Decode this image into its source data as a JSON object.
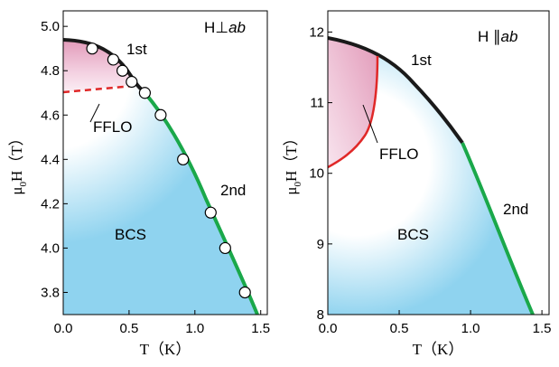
{
  "chart_data": [
    {
      "type": "line",
      "panel_label": "H⊥",
      "panel_label_italic": "ab",
      "xlabel": "T（K）",
      "ylabel_main": "μ",
      "ylabel_sub": "0",
      "ylabel_rest": "H（T）",
      "xlim": [
        0,
        1.55
      ],
      "ylim": [
        3.7,
        5.07
      ],
      "xticks": [
        "0.0",
        "0.5",
        "1.0",
        "1.5"
      ],
      "yticks": [
        "3.8",
        "4.0",
        "4.2",
        "4.4",
        "4.6",
        "4.8",
        "5.0"
      ],
      "region_labels": {
        "first": "1st",
        "second": "2nd",
        "ffle": "FFLO",
        "bcs": "BCS"
      },
      "colors": {
        "first_order": "#1a1a1a",
        "second_order": "#1aa84a",
        "fflo_boundary": "#e02828",
        "bcs_fill": "#8fd3ef",
        "fflo_fill": "#e9a9c4"
      },
      "series": [
        {
          "name": "1st",
          "x": [
            0,
            0.2,
            0.4,
            0.5,
            0.6
          ],
          "y": [
            4.95,
            4.92,
            4.84,
            4.77,
            4.7
          ]
        },
        {
          "name": "2nd",
          "x": [
            0.6,
            0.8,
            1.0,
            1.2,
            1.35,
            1.45
          ],
          "y": [
            4.7,
            4.5,
            4.25,
            3.95,
            3.73,
            3.55
          ]
        },
        {
          "name": "FFLO",
          "x": [
            0,
            0.2,
            0.5
          ],
          "y": [
            4.71,
            4.72,
            4.74
          ]
        }
      ],
      "points": {
        "x": [
          0.22,
          0.38,
          0.45,
          0.52,
          0.62,
          0.74,
          0.91,
          1.12,
          1.23,
          1.38
        ],
        "y": [
          4.9,
          4.85,
          4.8,
          4.75,
          4.7,
          4.6,
          4.4,
          4.16,
          4.0,
          3.8
        ]
      }
    },
    {
      "type": "line",
      "panel_label": "H ∥",
      "panel_label_italic": "ab",
      "xlabel": "T（K）",
      "ylabel_main": "μ",
      "ylabel_sub": "0",
      "ylabel_rest": "H（T）",
      "xlim": [
        0,
        1.55
      ],
      "ylim": [
        8,
        12.3
      ],
      "xticks": [
        "0.0",
        "0.5",
        "1.0",
        "1.5"
      ],
      "yticks": [
        "8",
        "9",
        "10",
        "11",
        "12"
      ],
      "region_labels": {
        "first": "1st",
        "second": "2nd",
        "ffle": "FFLO",
        "bcs": "BCS"
      },
      "colors": {
        "first_order": "#1a1a1a",
        "second_order": "#1aa84a",
        "fflo_boundary": "#e02828",
        "bcs_fill": "#8fd3ef",
        "fflo_fill": "#e9a9c4"
      },
      "series": [
        {
          "name": "1st",
          "x": [
            0,
            0.3,
            0.6,
            0.9
          ],
          "y": [
            11.85,
            11.6,
            11.1,
            10.4
          ]
        },
        {
          "name": "2nd",
          "x": [
            0.9,
            1.1,
            1.3,
            1.45
          ],
          "y": [
            10.4,
            9.6,
            8.6,
            7.9
          ]
        },
        {
          "name": "FFLO",
          "x": [
            0,
            0.2,
            0.28,
            0.3
          ],
          "y": [
            10.05,
            10.5,
            11.0,
            11.6
          ]
        }
      ]
    }
  ]
}
